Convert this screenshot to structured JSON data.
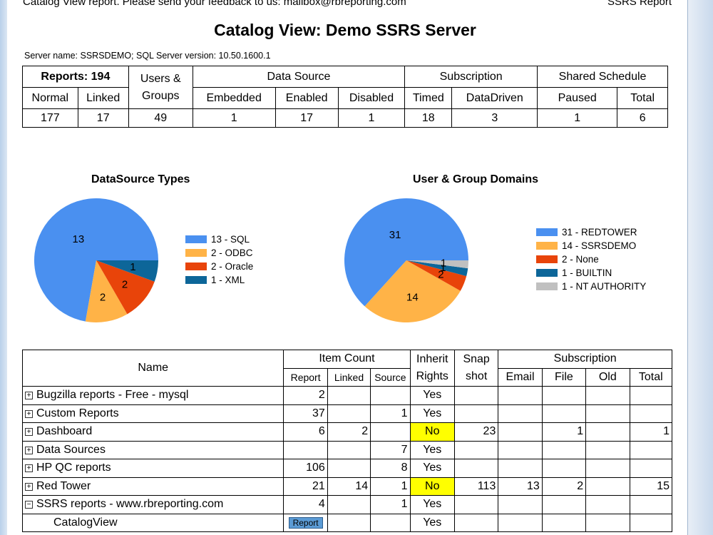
{
  "header": {
    "topline_left": "Catalog View report. Please send your feedback to us: mailbox@rbreporting.com",
    "topline_right": "SSRS Report",
    "title": "Catalog View: Demo SSRS Server",
    "server_info": "Server name: SSRSDEMO; SQL Server version: 10.50.1600.1"
  },
  "summary": {
    "reports_label": "Reports: 194",
    "users_groups_label": "Users & Groups",
    "data_source_label": "Data Source",
    "subscription_label": "Subscription",
    "shared_schedule_label": "Shared Schedule",
    "cols": [
      "Normal",
      "Linked",
      "Embedded",
      "Enabled",
      "Disabled",
      "Timed",
      "DataDriven",
      "Paused",
      "Total"
    ],
    "values": [
      "177",
      "17",
      "49",
      "1",
      "17",
      "1",
      "18",
      "3",
      "1",
      "6"
    ]
  },
  "chart_data": [
    {
      "type": "pie",
      "title": "DataSource Types",
      "labels": [
        "SQL",
        "ODBC",
        "Oracle",
        "XML"
      ],
      "values": [
        13,
        2,
        2,
        1
      ],
      "legend": [
        "13 - SQL",
        "2 - ODBC",
        "2 - Oracle",
        "1 - XML"
      ],
      "colors": [
        "#4a90f0",
        "#ffb347",
        "#e8440a",
        "#0d6699"
      ],
      "legend_position": "right"
    },
    {
      "type": "pie",
      "title": "User & Group Domains",
      "labels": [
        "REDTOWER",
        "SSRSDEMO",
        "None",
        "BUILTIN",
        "NT AUTHORITY"
      ],
      "values": [
        31,
        14,
        2,
        1,
        1
      ],
      "legend": [
        "31 - REDTOWER",
        "14 - SSRSDEMO",
        "2 - None",
        "1 - BUILTIN",
        "1 - NT AUTHORITY"
      ],
      "colors": [
        "#4a90f0",
        "#ffb347",
        "#e8440a",
        "#0d6699",
        "#c0c0c0"
      ],
      "legend_position": "right"
    }
  ],
  "catalog": {
    "headers": {
      "name": "Name",
      "item_count": "Item Count",
      "inherit_rights": "Inherit Rights",
      "snapshot": "Snap shot",
      "subscription": "Subscription",
      "report": "Report",
      "linked": "Linked",
      "source": "Source",
      "email": "Email",
      "file": "File",
      "old": "Old",
      "total": "Total"
    },
    "rows": [
      {
        "expander": "+",
        "name": "Bugzilla reports - Free - mysql",
        "report": "2",
        "linked": "",
        "source": "",
        "inherit": "Yes",
        "snapshot": "",
        "email": "",
        "file": "",
        "old": "",
        "total": ""
      },
      {
        "expander": "+",
        "name": "Custom Reports",
        "report": "37",
        "linked": "",
        "source": "1",
        "inherit": "Yes",
        "snapshot": "",
        "email": "",
        "file": "",
        "old": "",
        "total": ""
      },
      {
        "expander": "+",
        "name": "Dashboard",
        "report": "6",
        "linked": "2",
        "source": "",
        "inherit": "No",
        "snapshot": "23",
        "email": "",
        "file": "1",
        "old": "",
        "total": "1"
      },
      {
        "expander": "+",
        "name": "Data Sources",
        "report": "",
        "linked": "",
        "source": "7",
        "inherit": "Yes",
        "snapshot": "",
        "email": "",
        "file": "",
        "old": "",
        "total": ""
      },
      {
        "expander": "+",
        "name": "HP QC reports",
        "report": "106",
        "linked": "",
        "source": "8",
        "inherit": "Yes",
        "snapshot": "",
        "email": "",
        "file": "",
        "old": "",
        "total": ""
      },
      {
        "expander": "+",
        "name": "Red Tower",
        "report": "21",
        "linked": "14",
        "source": "1",
        "inherit": "No",
        "snapshot": "113",
        "email": "13",
        "file": "2",
        "old": "",
        "total": "15"
      },
      {
        "expander": "−",
        "name": "SSRS reports - www.rbreporting.com",
        "report": "4",
        "linked": "",
        "source": "1",
        "inherit": "Yes",
        "snapshot": "",
        "email": "",
        "file": "",
        "old": "",
        "total": ""
      },
      {
        "expander": "",
        "name": "CatalogView",
        "report": "Report",
        "linked": "",
        "source": "",
        "inherit": "Yes",
        "snapshot": "",
        "email": "",
        "file": "",
        "old": "",
        "total": ""
      }
    ]
  }
}
